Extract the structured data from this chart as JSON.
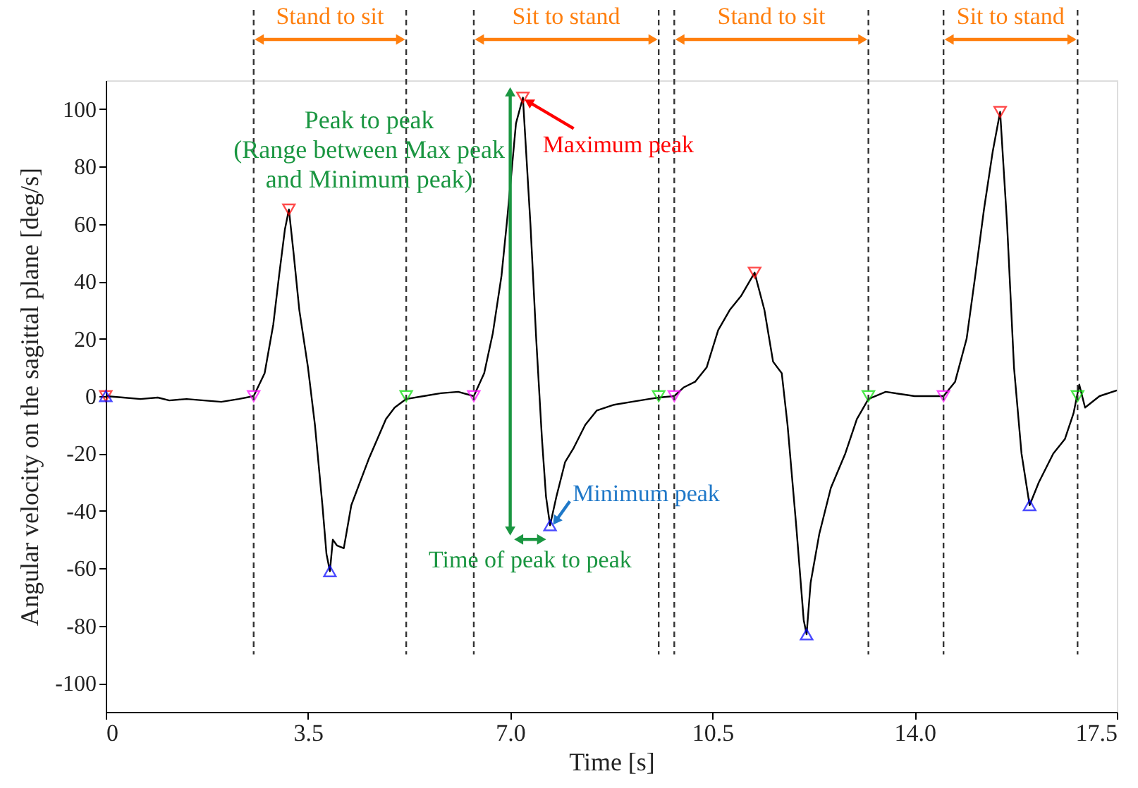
{
  "chart_data": {
    "type": "line",
    "xlabel": "Time [s]",
    "ylabel": "Angular velocity on the sagittal plane [deg/s]",
    "xlim": [
      0,
      17.5
    ],
    "xticks": [
      0,
      3.5,
      {
        "value": 7,
        "label": "7.0"
      },
      10.5,
      {
        "value": 14,
        "label": "14.0"
      },
      17.5
    ],
    "ylim": [
      -110,
      110
    ],
    "yticks": [
      -100,
      -80,
      -60,
      -40,
      -20,
      0,
      20,
      40,
      60,
      80,
      100
    ],
    "grid": false,
    "series": [
      {
        "color": "#000000",
        "line_style": "solid",
        "x": [
          0,
          0.3,
          0.6,
          0.9,
          1.1,
          1.4,
          1.7,
          2.0,
          2.3,
          2.56,
          2.75,
          2.9,
          3.0,
          3.1,
          3.17,
          3.25,
          3.35,
          3.5,
          3.62,
          3.75,
          3.82,
          3.88,
          3.93,
          4.0,
          4.12,
          4.25,
          4.4,
          4.55,
          4.7,
          4.85,
          5.0,
          5.2,
          5.5,
          5.8,
          6.1,
          6.37,
          6.55,
          6.7,
          6.85,
          6.95,
          7.1,
          7.22,
          7.35,
          7.45,
          7.55,
          7.62,
          7.69,
          7.8,
          7.95,
          8.1,
          8.3,
          8.5,
          8.8,
          9.1,
          9.4,
          9.57,
          9.84,
          10.0,
          10.2,
          10.4,
          10.6,
          10.8,
          11.0,
          11.23,
          11.4,
          11.55,
          11.7,
          11.8,
          11.95,
          12.08,
          12.13,
          12.2,
          12.35,
          12.55,
          12.8,
          13.0,
          13.2,
          13.5,
          14.0,
          14.5,
          14.7,
          14.9,
          15.05,
          15.2,
          15.35,
          15.48,
          15.6,
          15.72,
          15.85,
          15.99,
          16.15,
          16.4,
          16.6,
          16.75,
          16.85,
          16.95,
          17.2,
          17.5
        ],
        "values": [
          0,
          -0.5,
          -1,
          -0.5,
          -1.5,
          -1,
          -1.5,
          -2,
          -1,
          0,
          8,
          25,
          42,
          58,
          65,
          50,
          30,
          10,
          -10,
          -38,
          -55,
          -61,
          -50,
          -52,
          -53,
          -38,
          -30,
          -22,
          -15,
          -8,
          -4,
          -1,
          0,
          1,
          1.5,
          0,
          8,
          22,
          42,
          62,
          95,
          104,
          60,
          20,
          -15,
          -35,
          -45,
          -35,
          -23,
          -18,
          -10,
          -5,
          -3,
          -2,
          -1,
          -0.5,
          0,
          3,
          5,
          10,
          23,
          30,
          35,
          43,
          30,
          12,
          8,
          -10,
          -45,
          -78,
          -83,
          -65,
          -48,
          -32,
          -20,
          -8,
          -1,
          1.5,
          0,
          0,
          5,
          20,
          42,
          65,
          85,
          99,
          60,
          10,
          -20,
          -38,
          -30,
          -20,
          -15,
          -6,
          4,
          -4,
          0,
          2
        ]
      },
      {
        "type": "scatter",
        "marker": "triangle-down",
        "color": "#ff0000",
        "x": [
          0,
          3.17,
          7.22,
          11.23,
          15.48
        ],
        "values": [
          0,
          65,
          104,
          43,
          99
        ]
      },
      {
        "type": "scatter",
        "marker": "triangle",
        "color": "#0000ff",
        "x": [
          0,
          3.88,
          7.69,
          12.13,
          15.99
        ],
        "values": [
          0,
          -61,
          -45,
          -83,
          -38
        ]
      },
      {
        "type": "scatter",
        "marker": "triangle-down",
        "color": "#ff00ff",
        "x": [
          2.56,
          6.37,
          9.84,
          14.5
        ],
        "values": [
          0,
          0,
          0,
          0
        ]
      },
      {
        "type": "scatter",
        "marker": "triangle-down",
        "color": "#00dd00",
        "x": [
          5.2,
          9.57,
          13.2,
          16.82
        ],
        "values": [
          0,
          0,
          0,
          0
        ]
      }
    ],
    "ref_lines": [
      {
        "axis": "x",
        "value": 2.56,
        "line_style": "dashed"
      },
      {
        "axis": "x",
        "value": 5.2,
        "line_style": "dashed"
      },
      {
        "axis": "x",
        "value": 6.37,
        "line_style": "dashed"
      },
      {
        "axis": "x",
        "value": 9.57,
        "line_style": "dashed"
      },
      {
        "axis": "x",
        "value": 9.84,
        "line_style": "dashed"
      },
      {
        "axis": "x",
        "value": 13.2,
        "line_style": "dashed"
      },
      {
        "axis": "x",
        "value": 14.5,
        "line_style": "dashed"
      },
      {
        "axis": "x",
        "value": 16.82,
        "line_style": "dashed"
      }
    ],
    "annotations": [
      "Stand to sit",
      "Sit to stand",
      "Stand to sit",
      "Sit to stand",
      "Peak to peak\n(Range between Max peak\nand Minimum peak)",
      {
        "text": "Maximum peak",
        "x": 7.22,
        "y": 104
      },
      {
        "text": "Minimum peak",
        "x": 7.69,
        "y": -45
      },
      "Time of peak to peak"
    ]
  }
}
